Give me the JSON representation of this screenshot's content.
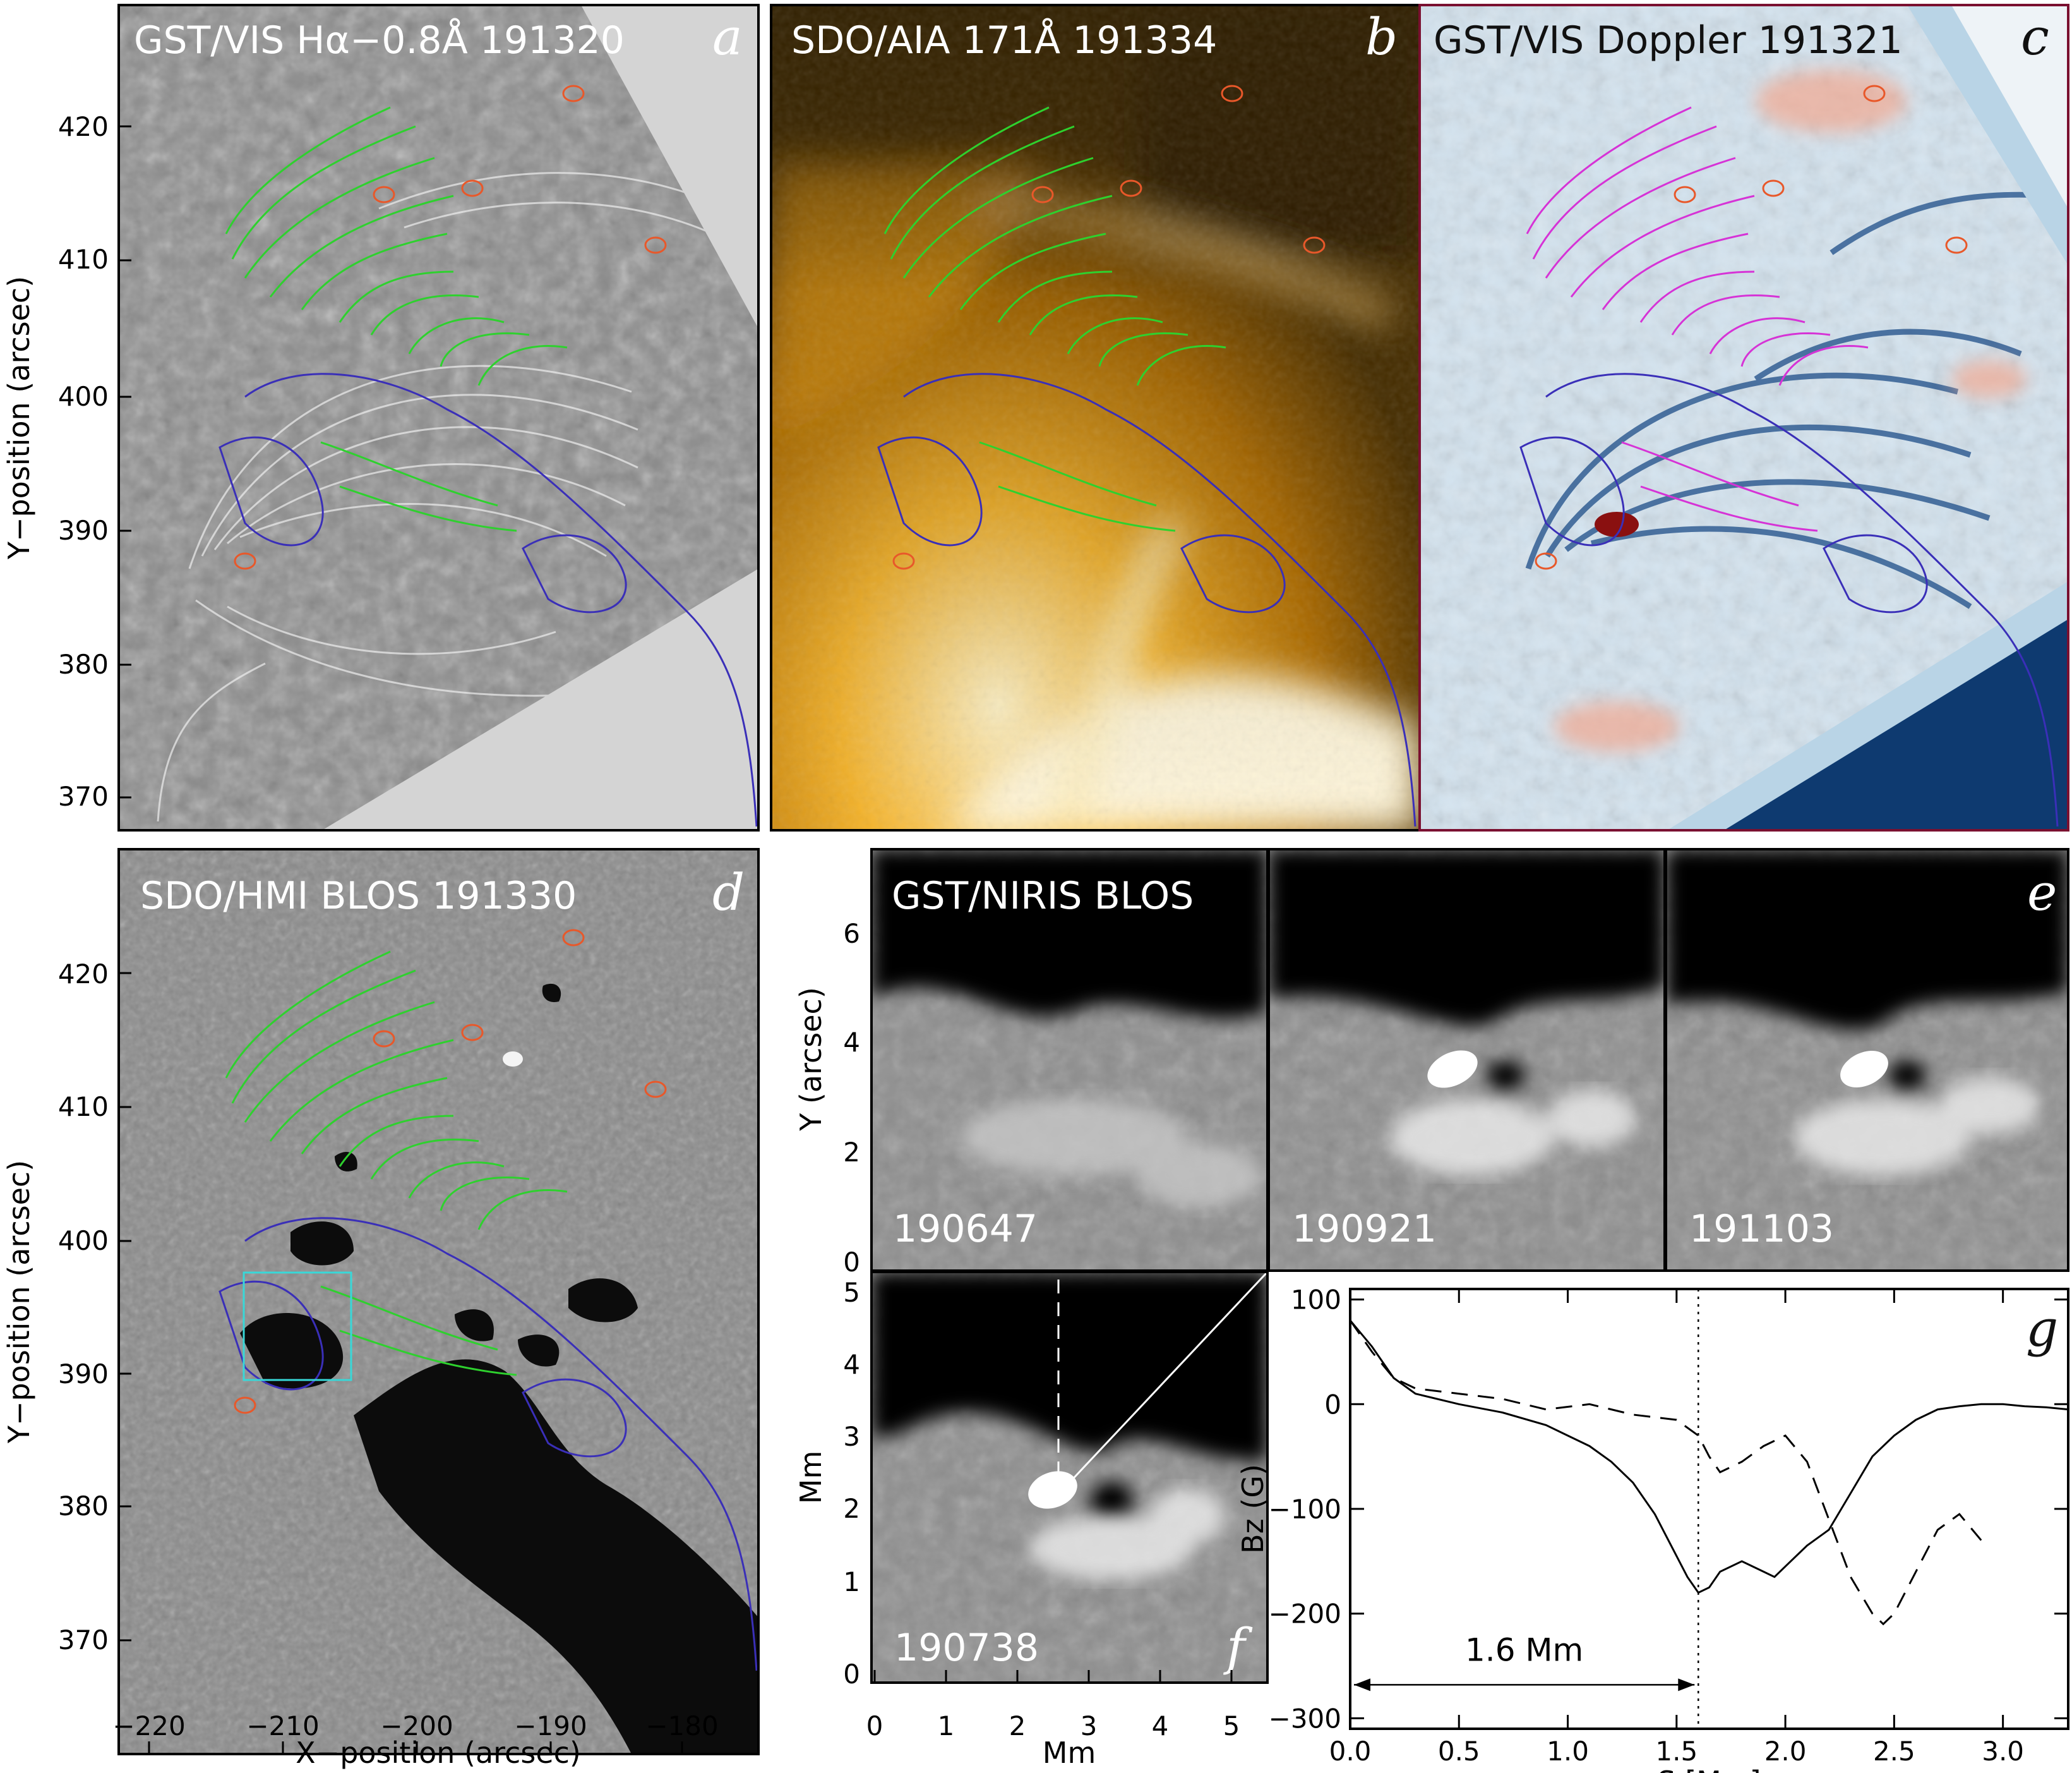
{
  "panels": {
    "a": {
      "letter": "a",
      "title": "GST/VIS Hα−0.8Å 191320"
    },
    "b": {
      "letter": "b",
      "title": "SDO/AIA 171Å 191334"
    },
    "c": {
      "letter": "c",
      "title": "GST/VIS Doppler 191321"
    },
    "d": {
      "letter": "d",
      "title": "SDO/HMI BLOS 191330"
    },
    "e": {
      "letter": "e",
      "title": "GST/NIRIS BLOS",
      "times": [
        "190647",
        "190921",
        "191103"
      ]
    },
    "f": {
      "letter": "f",
      "time": "190738"
    },
    "g": {
      "letter": "g"
    }
  },
  "axes": {
    "y_top_label": "Y−position (arcsec)",
    "y_d_label": "Y−position (arcsec)",
    "x_d_label": "X−position (arcsec)",
    "y_ticks": [
      "420",
      "410",
      "400",
      "390",
      "380",
      "370"
    ],
    "x_ticks": [
      "−220",
      "−210",
      "−200",
      "−190",
      "−180"
    ],
    "e_ylabel": "Y (arcsec)",
    "e_yticks": [
      "6",
      "4",
      "2",
      "0"
    ],
    "f_ylabel": "Mm",
    "f_xlabel": "Mm",
    "f_yticks": [
      "5",
      "4",
      "3",
      "2",
      "1",
      "0"
    ],
    "f_xticks": [
      "0",
      "1",
      "2",
      "3",
      "4",
      "5"
    ]
  },
  "colors": {
    "contour_negative": "#3a2fb8",
    "contour_positive": "#e8582a",
    "field_lines": "#2ed12e",
    "field_lines_c": "#d633d6",
    "box": "#38d8d8",
    "aia_bright": "#f7c55a",
    "aia_dark": "#3a2600"
  },
  "chart_data": {
    "type": "line",
    "title": "",
    "xlabel": "S [Mm]",
    "ylabel": "Bz (G)",
    "xlim": [
      0,
      3.3
    ],
    "ylim": [
      -310,
      110
    ],
    "xticks": [
      "0.0",
      "0.5",
      "1.0",
      "1.5",
      "2.0",
      "2.5",
      "3.0"
    ],
    "yticks": [
      "100",
      "0",
      "−100",
      "−200",
      "−300"
    ],
    "annotation": "1.6 Mm",
    "vline_x": 1.6,
    "series": [
      {
        "style": "solid",
        "x": [
          0,
          0.1,
          0.2,
          0.3,
          0.5,
          0.7,
          0.9,
          1.0,
          1.1,
          1.2,
          1.3,
          1.4,
          1.5,
          1.55,
          1.6,
          1.65,
          1.7,
          1.8,
          1.9,
          1.95,
          2.0,
          2.1,
          2.2,
          2.3,
          2.4,
          2.5,
          2.6,
          2.7,
          2.8,
          2.9,
          3.0,
          3.1,
          3.2,
          3.3
        ],
        "y": [
          80,
          55,
          25,
          10,
          0,
          -8,
          -20,
          -30,
          -40,
          -55,
          -75,
          -105,
          -145,
          -165,
          -180,
          -175,
          -160,
          -150,
          -160,
          -165,
          -155,
          -135,
          -120,
          -85,
          -50,
          -30,
          -15,
          -5,
          -2,
          0,
          0,
          -2,
          -3,
          -5
        ]
      },
      {
        "style": "dashed",
        "x": [
          0,
          0.1,
          0.2,
          0.3,
          0.5,
          0.7,
          0.9,
          1.1,
          1.3,
          1.5,
          1.6,
          1.65,
          1.7,
          1.8,
          1.9,
          2.0,
          2.1,
          2.2,
          2.3,
          2.4,
          2.45,
          2.5,
          2.6,
          2.7,
          2.8,
          2.9
        ],
        "y": [
          80,
          50,
          25,
          15,
          10,
          5,
          -5,
          0,
          -10,
          -15,
          -30,
          -50,
          -65,
          -55,
          -40,
          -30,
          -55,
          -110,
          -165,
          -200,
          -210,
          -200,
          -160,
          -120,
          -105,
          -130
        ]
      }
    ]
  }
}
